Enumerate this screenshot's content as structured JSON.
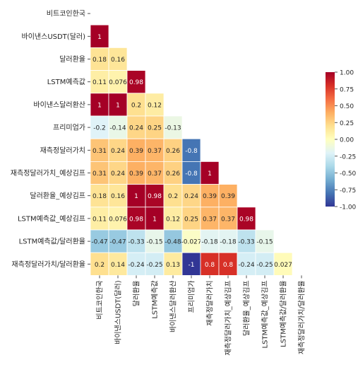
{
  "chart_data": {
    "type": "heatmap",
    "title": "",
    "xlabel": "",
    "ylabel": "",
    "mask": "upper-triangle",
    "row_labels": [
      "비트코인한국",
      "바이낸스USDT(달러)",
      "달러환율",
      "LSTM예측값",
      "바이낸스달러환산",
      "프리미엄가",
      "재측정달러가치",
      "재측정달러가치_예상김프",
      "달러환율_예상김프",
      "LSTM예측값_예상김프",
      "LSTM예측값/달러환율",
      "재측정달러가치/달러환율"
    ],
    "col_labels": [
      "비트코인한국",
      "바이낸스USDT(달러)",
      "달러환율",
      "LSTM예측값",
      "바이낸스달러환산",
      "프리미엄가",
      "재측정달러가치",
      "재측정달러가치_예상김프",
      "달러환율_예상김프",
      "LSTM예측값_예상김프",
      "LSTM예측값/달러환율",
      "재측정달러가치/달러환율"
    ],
    "values": [
      [],
      [
        1
      ],
      [
        0.18,
        0.16
      ],
      [
        0.11,
        0.076,
        0.98
      ],
      [
        1,
        1,
        0.2,
        0.12
      ],
      [
        -0.2,
        -0.14,
        0.24,
        0.25,
        -0.13
      ],
      [
        0.31,
        0.24,
        0.39,
        0.37,
        0.26,
        -0.8
      ],
      [
        0.31,
        0.24,
        0.39,
        0.37,
        0.26,
        -0.8,
        1
      ],
      [
        0.18,
        0.16,
        1,
        0.98,
        0.2,
        0.24,
        0.39,
        0.39
      ],
      [
        0.11,
        0.076,
        0.98,
        1,
        0.12,
        0.25,
        0.37,
        0.37,
        0.98
      ],
      [
        -0.47,
        -0.47,
        -0.33,
        -0.15,
        -0.48,
        -0.027,
        -0.18,
        -0.18,
        -0.33,
        -0.15
      ],
      [
        0.2,
        0.14,
        -0.24,
        -0.25,
        0.13,
        -1,
        0.8,
        0.8,
        -0.24,
        -0.25,
        0.027
      ]
    ],
    "colorbar": {
      "colormap": "RdYlBu_r",
      "vmin": -1,
      "vmax": 1,
      "ticks": [
        "1.00",
        "0.75",
        "0.50",
        "0.25",
        "0.00",
        "-0.25",
        "-0.50",
        "-0.75",
        "-1.00"
      ]
    }
  }
}
